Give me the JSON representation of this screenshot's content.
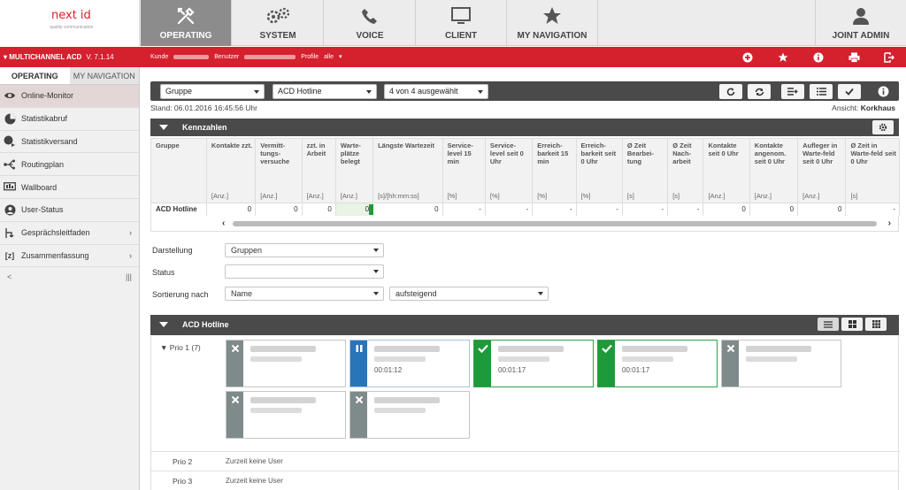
{
  "brand": {
    "name": "next id",
    "tagline": "quality communication"
  },
  "topnav": {
    "tabs": [
      {
        "label": "OPERATING",
        "icon": "tools-icon",
        "active": true
      },
      {
        "label": "SYSTEM",
        "icon": "gears-icon"
      },
      {
        "label": "VOICE",
        "icon": "phone-icon"
      },
      {
        "label": "CLIENT",
        "icon": "monitor-icon"
      },
      {
        "label": "MY NAVIGATION",
        "icon": "star-icon"
      }
    ],
    "user": {
      "label": "JOINT ADMIN",
      "icon": "user-icon"
    }
  },
  "redbar": {
    "app": "MULTICHANNEL ACD",
    "version": "V. 7.1.14",
    "kunde_label": "Kunde",
    "benutzer_label": "Benutzer",
    "profile_label": "Profile",
    "profile_value": "alle",
    "icons": [
      "add-circle-icon",
      "star-icon",
      "info-icon",
      "print-icon",
      "logout-icon"
    ]
  },
  "sidebar": {
    "tabs": [
      "OPERATING",
      "MY NAVIGATION"
    ],
    "items": [
      {
        "label": "Online-Monitor",
        "icon": "eye-icon",
        "active": true
      },
      {
        "label": "Statistikabruf",
        "icon": "pie-chart-icon"
      },
      {
        "label": "Statistikversand",
        "icon": "pie-send-icon"
      },
      {
        "label": "Routingplan",
        "icon": "routing-icon"
      },
      {
        "label": "Wallboard",
        "icon": "wallboard-icon"
      },
      {
        "label": "User-Status",
        "icon": "user-status-icon"
      },
      {
        "label": "Gesprächsleitfaden",
        "icon": "guide-icon",
        "chevron": true
      },
      {
        "label": "Zusammenfassung",
        "icon": "summary-icon",
        "chevron": true
      }
    ],
    "footer_left": "<",
    "footer_right": "|||"
  },
  "toolbar": {
    "select1": "Gruppe",
    "select2": "ACD Hotline",
    "select3": "4 von 4 ausgewählt",
    "buttons": [
      "refresh-icon",
      "sync-icon",
      "add-list-icon",
      "list-icon",
      "check-icon",
      "info-icon"
    ]
  },
  "stand": "Stand: 06.01.2016 16:45:56 Uhr",
  "ansicht_label": "Ansicht:",
  "ansicht_value": "Korkhaus",
  "kennzahlen": {
    "title": "Kennzahlen",
    "columns": [
      {
        "head": "Gruppe",
        "unit": ""
      },
      {
        "head": "Kontakte zzt.",
        "unit": "[Anz.]"
      },
      {
        "head": "Vermitt-tungs-versuche",
        "unit": "[Anz.]"
      },
      {
        "head": "zzt. in Arbeit",
        "unit": "[Anz.]"
      },
      {
        "head": "Warte-plätze belegt",
        "unit": "[Anz.]"
      },
      {
        "head": "Längste Wartezeit",
        "unit": "[s]/[hh:mm:ss]"
      },
      {
        "head": "Service-level 15 min",
        "unit": "[%]"
      },
      {
        "head": "Service-level seit 0 Uhr",
        "unit": "[%]"
      },
      {
        "head": "Erreich-barkeit 15 min",
        "unit": "[%]"
      },
      {
        "head": "Erreich-barkeit seit 0 Uhr",
        "unit": "[%]"
      },
      {
        "head": "Ø Zeit Bearbei-tung",
        "unit": "[s]"
      },
      {
        "head": "Ø Zeit Nach-arbeit",
        "unit": "[s]"
      },
      {
        "head": "Kontakte seit 0 Uhr",
        "unit": "[Anz.]"
      },
      {
        "head": "Kontakte angenom. seit 0 Uhr",
        "unit": "[Anz.]"
      },
      {
        "head": "Aufleger in Warte-feld seit 0 Uhr",
        "unit": "[Anz.]"
      },
      {
        "head": "Ø Zeit in Warte-feld seit 0 Uhr",
        "unit": "[s]"
      }
    ],
    "row": [
      "ACD Hotline",
      "0",
      "0",
      "0",
      "0",
      "0",
      "-",
      "-",
      "-",
      "-",
      "-",
      "-",
      "0",
      "0",
      "0",
      "-"
    ]
  },
  "form": {
    "darstellung_label": "Darstellung",
    "darstellung_value": "Gruppen",
    "status_label": "Status",
    "status_value": "",
    "sortierung_label": "Sortierung nach",
    "sortierung_value": "Name",
    "order_value": "aufsteigend"
  },
  "acd": {
    "title": "ACD Hotline",
    "prio1_label": "Prio 1 (7)",
    "cards": [
      {
        "state": "offline",
        "icon": "close-icon",
        "color": "#7f8a8a",
        "time": ""
      },
      {
        "state": "pause",
        "icon": "pause-icon",
        "color": "#2a74b8",
        "time": "00:01:12"
      },
      {
        "state": "available",
        "icon": "check-icon",
        "color": "#1f9a3b",
        "time": "00:01:17"
      },
      {
        "state": "available",
        "icon": "check-icon",
        "color": "#1f9a3b",
        "time": "00:01:17"
      },
      {
        "state": "offline",
        "icon": "close-icon",
        "color": "#7f8a8a",
        "time": ""
      },
      {
        "state": "offline",
        "icon": "close-icon",
        "color": "#7f8a8a",
        "time": ""
      },
      {
        "state": "offline",
        "icon": "close-icon",
        "color": "#7f8a8a",
        "time": ""
      }
    ],
    "prio2_label": "Prio 2",
    "prio2_text": "Zurzeit keine User",
    "prio3_label": "Prio 3",
    "prio3_text": "Zurzeit keine User"
  },
  "colors": {
    "accent_red": "#d5202e",
    "dark_bar": "#4a4a4a",
    "green": "#1f9a3b",
    "blue": "#2a74b8",
    "grey": "#7f8a8a"
  }
}
